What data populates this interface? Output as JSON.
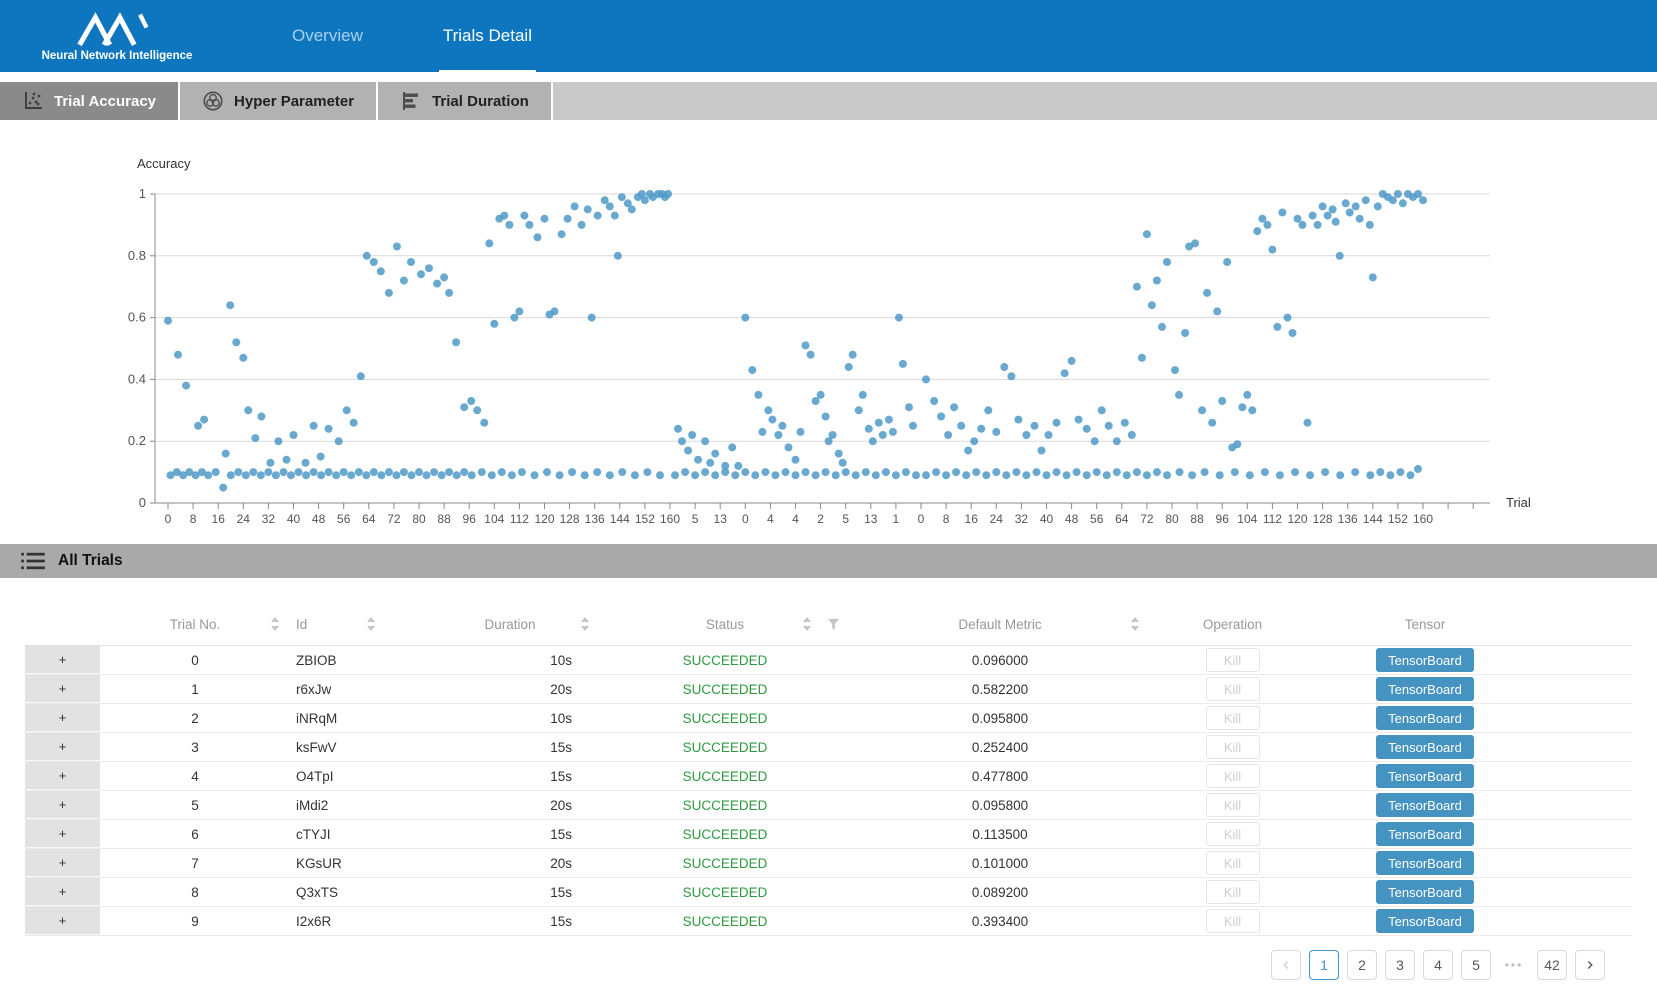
{
  "nav": {
    "brand": "Neural Network Intelligence",
    "tabs": [
      {
        "label": "Overview",
        "active": false
      },
      {
        "label": "Trials Detail",
        "active": true
      }
    ]
  },
  "chart_tabs": [
    {
      "label": "Trial Accuracy",
      "icon": "scatter-plot-icon",
      "active": true
    },
    {
      "label": "Hyper Parameter",
      "icon": "venn-icon",
      "active": false
    },
    {
      "label": "Trial Duration",
      "icon": "bars-icon",
      "active": false
    }
  ],
  "chart_data": {
    "type": "scatter",
    "title": "",
    "y_axis_label": "Accuracy",
    "x_axis_label": "Trial",
    "ylim": [
      0,
      1
    ],
    "yticks": [
      0,
      0.2,
      0.4,
      0.6,
      0.8,
      1
    ],
    "grid": true,
    "point_color": "#4f9ac8",
    "xticklabels": [
      "0",
      "8",
      "16",
      "24",
      "32",
      "40",
      "48",
      "56",
      "64",
      "72",
      "80",
      "88",
      "96",
      "104",
      "112",
      "120",
      "128",
      "136",
      "144",
      "152",
      "160",
      "5",
      "13",
      "0",
      "4",
      "4",
      "2",
      "5",
      "13",
      "1",
      "0",
      "8",
      "16",
      "24",
      "32",
      "40",
      "48",
      "56",
      "64",
      "72",
      "80",
      "88",
      "96",
      "104",
      "112",
      "120",
      "128",
      "136",
      "144",
      "152",
      "160"
    ],
    "x_unit": "axis tick index (see xticklabels, 0-50)",
    "points": [
      [
        0.1,
        0.09
      ],
      [
        0.35,
        0.1
      ],
      [
        0.6,
        0.09
      ],
      [
        0.85,
        0.1
      ],
      [
        1.1,
        0.09
      ],
      [
        1.35,
        0.1
      ],
      [
        1.6,
        0.09
      ],
      [
        1.9,
        0.1
      ],
      [
        2.2,
        0.05
      ],
      [
        2.3,
        0.16
      ],
      [
        2.5,
        0.09
      ],
      [
        2.8,
        0.1
      ],
      [
        3.1,
        0.09
      ],
      [
        3.4,
        0.1
      ],
      [
        3.7,
        0.09
      ],
      [
        4.0,
        0.1
      ],
      [
        4.3,
        0.09
      ],
      [
        4.6,
        0.1
      ],
      [
        4.9,
        0.09
      ],
      [
        5.2,
        0.1
      ],
      [
        5.5,
        0.09
      ],
      [
        5.8,
        0.1
      ],
      [
        6.1,
        0.09
      ],
      [
        6.4,
        0.1
      ],
      [
        6.7,
        0.09
      ],
      [
        7.0,
        0.1
      ],
      [
        7.3,
        0.09
      ],
      [
        7.6,
        0.1
      ],
      [
        7.9,
        0.09
      ],
      [
        8.2,
        0.1
      ],
      [
        8.5,
        0.09
      ],
      [
        8.8,
        0.1
      ],
      [
        9.1,
        0.09
      ],
      [
        9.4,
        0.1
      ],
      [
        9.7,
        0.09
      ],
      [
        10.0,
        0.1
      ],
      [
        10.3,
        0.09
      ],
      [
        10.6,
        0.1
      ],
      [
        10.9,
        0.09
      ],
      [
        11.2,
        0.1
      ],
      [
        11.5,
        0.09
      ],
      [
        11.8,
        0.1
      ],
      [
        12.1,
        0.09
      ],
      [
        12.5,
        0.1
      ],
      [
        12.9,
        0.09
      ],
      [
        13.3,
        0.1
      ],
      [
        13.7,
        0.09
      ],
      [
        14.1,
        0.1
      ],
      [
        14.6,
        0.09
      ],
      [
        15.1,
        0.1
      ],
      [
        15.6,
        0.09
      ],
      [
        16.1,
        0.1
      ],
      [
        16.6,
        0.09
      ],
      [
        17.1,
        0.1
      ],
      [
        17.6,
        0.09
      ],
      [
        18.1,
        0.1
      ],
      [
        18.6,
        0.09
      ],
      [
        19.1,
        0.1
      ],
      [
        19.6,
        0.09
      ],
      [
        0,
        0.59
      ],
      [
        0.4,
        0.48
      ],
      [
        0.72,
        0.38
      ],
      [
        1.2,
        0.25
      ],
      [
        1.44,
        0.27
      ],
      [
        2.48,
        0.64
      ],
      [
        2.72,
        0.52
      ],
      [
        3.0,
        0.47
      ],
      [
        3.2,
        0.3
      ],
      [
        3.48,
        0.21
      ],
      [
        3.72,
        0.28
      ],
      [
        4.08,
        0.13
      ],
      [
        4.4,
        0.2
      ],
      [
        4.72,
        0.14
      ],
      [
        5.0,
        0.22
      ],
      [
        5.48,
        0.13
      ],
      [
        5.8,
        0.25
      ],
      [
        6.08,
        0.15
      ],
      [
        6.4,
        0.24
      ],
      [
        6.8,
        0.2
      ],
      [
        7.12,
        0.3
      ],
      [
        7.4,
        0.26
      ],
      [
        7.68,
        0.41
      ],
      [
        7.92,
        0.8
      ],
      [
        8.2,
        0.78
      ],
      [
        8.48,
        0.75
      ],
      [
        8.8,
        0.68
      ],
      [
        9.12,
        0.83
      ],
      [
        9.4,
        0.72
      ],
      [
        9.68,
        0.78
      ],
      [
        10.08,
        0.74
      ],
      [
        10.4,
        0.76
      ],
      [
        10.72,
        0.71
      ],
      [
        11.0,
        0.73
      ],
      [
        11.2,
        0.68
      ],
      [
        11.48,
        0.52
      ],
      [
        11.8,
        0.31
      ],
      [
        12.08,
        0.33
      ],
      [
        12.32,
        0.3
      ],
      [
        12.6,
        0.26
      ],
      [
        12.8,
        0.84
      ],
      [
        13.0,
        0.58
      ],
      [
        13.2,
        0.92
      ],
      [
        13.4,
        0.93
      ],
      [
        13.6,
        0.9
      ],
      [
        13.8,
        0.6
      ],
      [
        14.0,
        0.62
      ],
      [
        14.2,
        0.93
      ],
      [
        14.4,
        0.9
      ],
      [
        14.72,
        0.86
      ],
      [
        15.0,
        0.92
      ],
      [
        15.2,
        0.61
      ],
      [
        15.4,
        0.62
      ],
      [
        15.68,
        0.87
      ],
      [
        15.92,
        0.92
      ],
      [
        16.2,
        0.96
      ],
      [
        16.48,
        0.9
      ],
      [
        16.72,
        0.95
      ],
      [
        16.88,
        0.6
      ],
      [
        17.12,
        0.93
      ],
      [
        17.4,
        0.98
      ],
      [
        17.6,
        0.96
      ],
      [
        17.8,
        0.93
      ],
      [
        17.92,
        0.8
      ],
      [
        18.08,
        0.99
      ],
      [
        18.32,
        0.97
      ],
      [
        18.48,
        0.95
      ],
      [
        18.72,
        0.99
      ],
      [
        18.88,
        1
      ],
      [
        19.0,
        0.98
      ],
      [
        19.2,
        1
      ],
      [
        19.32,
        0.99
      ],
      [
        19.52,
        1
      ],
      [
        19.68,
        1
      ],
      [
        19.8,
        0.99
      ],
      [
        19.92,
        1
      ],
      [
        20.2,
        0.09
      ],
      [
        20.6,
        0.1
      ],
      [
        21.0,
        0.09
      ],
      [
        21.4,
        0.1
      ],
      [
        21.8,
        0.09
      ],
      [
        22.2,
        0.1
      ],
      [
        22.6,
        0.09
      ],
      [
        23.0,
        0.1
      ],
      [
        23.4,
        0.09
      ],
      [
        23.8,
        0.1
      ],
      [
        24.2,
        0.09
      ],
      [
        24.6,
        0.1
      ],
      [
        25.0,
        0.09
      ],
      [
        25.4,
        0.1
      ],
      [
        25.8,
        0.09
      ],
      [
        26.2,
        0.1
      ],
      [
        26.6,
        0.09
      ],
      [
        27.0,
        0.1
      ],
      [
        27.4,
        0.09
      ],
      [
        27.8,
        0.1
      ],
      [
        28.2,
        0.09
      ],
      [
        28.6,
        0.1
      ],
      [
        29.0,
        0.09
      ],
      [
        29.4,
        0.1
      ],
      [
        29.8,
        0.09
      ],
      [
        20.32,
        0.24
      ],
      [
        20.48,
        0.2
      ],
      [
        20.72,
        0.17
      ],
      [
        20.88,
        0.22
      ],
      [
        21.12,
        0.14
      ],
      [
        21.4,
        0.2
      ],
      [
        21.6,
        0.13
      ],
      [
        21.8,
        0.16
      ],
      [
        22.2,
        0.12
      ],
      [
        22.48,
        0.18
      ],
      [
        22.72,
        0.12
      ],
      [
        23.0,
        0.6
      ],
      [
        23.28,
        0.43
      ],
      [
        23.52,
        0.35
      ],
      [
        23.68,
        0.23
      ],
      [
        23.92,
        0.3
      ],
      [
        24.08,
        0.27
      ],
      [
        24.32,
        0.22
      ],
      [
        24.48,
        0.25
      ],
      [
        24.72,
        0.18
      ],
      [
        25.0,
        0.14
      ],
      [
        25.2,
        0.23
      ],
      [
        25.4,
        0.51
      ],
      [
        25.6,
        0.48
      ],
      [
        25.8,
        0.33
      ],
      [
        26.0,
        0.35
      ],
      [
        26.2,
        0.28
      ],
      [
        26.32,
        0.2
      ],
      [
        26.48,
        0.22
      ],
      [
        26.72,
        0.16
      ],
      [
        26.88,
        0.13
      ],
      [
        27.12,
        0.44
      ],
      [
        27.28,
        0.48
      ],
      [
        27.52,
        0.3
      ],
      [
        27.68,
        0.35
      ],
      [
        27.92,
        0.24
      ],
      [
        28.08,
        0.2
      ],
      [
        28.32,
        0.26
      ],
      [
        28.48,
        0.22
      ],
      [
        28.72,
        0.27
      ],
      [
        28.88,
        0.23
      ],
      [
        29.12,
        0.6
      ],
      [
        29.28,
        0.45
      ],
      [
        29.52,
        0.31
      ],
      [
        29.68,
        0.25
      ],
      [
        30.2,
        0.09
      ],
      [
        30.6,
        0.1
      ],
      [
        31.0,
        0.09
      ],
      [
        31.4,
        0.1
      ],
      [
        31.8,
        0.09
      ],
      [
        32.2,
        0.1
      ],
      [
        32.6,
        0.09
      ],
      [
        33.0,
        0.1
      ],
      [
        33.4,
        0.09
      ],
      [
        33.8,
        0.1
      ],
      [
        34.2,
        0.09
      ],
      [
        34.6,
        0.1
      ],
      [
        35.0,
        0.09
      ],
      [
        35.4,
        0.1
      ],
      [
        35.8,
        0.09
      ],
      [
        36.2,
        0.1
      ],
      [
        36.6,
        0.09
      ],
      [
        37.0,
        0.1
      ],
      [
        37.4,
        0.09
      ],
      [
        37.8,
        0.1
      ],
      [
        38.2,
        0.09
      ],
      [
        38.6,
        0.1
      ],
      [
        39.0,
        0.09
      ],
      [
        39.4,
        0.1
      ],
      [
        39.8,
        0.09
      ],
      [
        40.3,
        0.1
      ],
      [
        40.8,
        0.09
      ],
      [
        41.3,
        0.1
      ],
      [
        41.9,
        0.09
      ],
      [
        42.5,
        0.1
      ],
      [
        43.1,
        0.09
      ],
      [
        43.7,
        0.1
      ],
      [
        44.3,
        0.09
      ],
      [
        44.9,
        0.1
      ],
      [
        45.5,
        0.09
      ],
      [
        46.1,
        0.1
      ],
      [
        46.7,
        0.09
      ],
      [
        47.3,
        0.1
      ],
      [
        47.9,
        0.09
      ],
      [
        48.3,
        0.1
      ],
      [
        48.7,
        0.09
      ],
      [
        49.1,
        0.1
      ],
      [
        49.5,
        0.09
      ],
      [
        49.8,
        0.11
      ],
      [
        30.2,
        0.4
      ],
      [
        30.52,
        0.33
      ],
      [
        30.8,
        0.28
      ],
      [
        31.08,
        0.22
      ],
      [
        31.32,
        0.31
      ],
      [
        31.6,
        0.25
      ],
      [
        31.88,
        0.17
      ],
      [
        32.12,
        0.2
      ],
      [
        32.4,
        0.24
      ],
      [
        32.68,
        0.3
      ],
      [
        33.0,
        0.23
      ],
      [
        33.32,
        0.44
      ],
      [
        33.6,
        0.41
      ],
      [
        33.88,
        0.27
      ],
      [
        34.2,
        0.22
      ],
      [
        34.52,
        0.25
      ],
      [
        34.8,
        0.17
      ],
      [
        35.08,
        0.22
      ],
      [
        35.4,
        0.26
      ],
      [
        35.72,
        0.42
      ],
      [
        36.0,
        0.46
      ],
      [
        36.28,
        0.27
      ],
      [
        36.6,
        0.24
      ],
      [
        36.92,
        0.2
      ],
      [
        37.2,
        0.3
      ],
      [
        37.48,
        0.25
      ],
      [
        37.8,
        0.2
      ],
      [
        38.12,
        0.26
      ],
      [
        38.4,
        0.22
      ],
      [
        38.6,
        0.7
      ],
      [
        38.8,
        0.47
      ],
      [
        39.0,
        0.87
      ],
      [
        39.2,
        0.64
      ],
      [
        39.4,
        0.72
      ],
      [
        39.6,
        0.57
      ],
      [
        39.8,
        0.78
      ],
      [
        40.12,
        0.43
      ],
      [
        40.28,
        0.35
      ],
      [
        40.52,
        0.55
      ],
      [
        40.68,
        0.83
      ],
      [
        40.92,
        0.84
      ],
      [
        41.2,
        0.3
      ],
      [
        41.4,
        0.68
      ],
      [
        41.6,
        0.26
      ],
      [
        41.8,
        0.62
      ],
      [
        42.0,
        0.33
      ],
      [
        42.2,
        0.78
      ],
      [
        42.4,
        0.18
      ],
      [
        42.6,
        0.19
      ],
      [
        42.8,
        0.31
      ],
      [
        43.0,
        0.35
      ],
      [
        43.2,
        0.3
      ],
      [
        43.4,
        0.88
      ],
      [
        43.6,
        0.92
      ],
      [
        43.8,
        0.9
      ],
      [
        44.0,
        0.82
      ],
      [
        44.2,
        0.57
      ],
      [
        44.4,
        0.94
      ],
      [
        44.6,
        0.6
      ],
      [
        44.8,
        0.55
      ],
      [
        45.0,
        0.92
      ],
      [
        45.2,
        0.9
      ],
      [
        45.4,
        0.26
      ],
      [
        45.6,
        0.93
      ],
      [
        45.8,
        0.9
      ],
      [
        46.0,
        0.96
      ],
      [
        46.2,
        0.93
      ],
      [
        46.4,
        0.95
      ],
      [
        46.52,
        0.91
      ],
      [
        46.68,
        0.8
      ],
      [
        46.92,
        0.97
      ],
      [
        47.08,
        0.94
      ],
      [
        47.32,
        0.96
      ],
      [
        47.48,
        0.92
      ],
      [
        47.72,
        0.98
      ],
      [
        47.88,
        0.9
      ],
      [
        48.0,
        0.73
      ],
      [
        48.2,
        0.96
      ],
      [
        48.4,
        1
      ],
      [
        48.6,
        0.99
      ],
      [
        48.8,
        0.98
      ],
      [
        49.0,
        1
      ],
      [
        49.2,
        0.97
      ],
      [
        49.4,
        1
      ],
      [
        49.6,
        0.99
      ],
      [
        49.8,
        1
      ],
      [
        50.0,
        0.98
      ]
    ]
  },
  "table": {
    "section_title": "All Trials",
    "expander_symbol": "+",
    "kill_label": "Kill",
    "tensorboard_label": "TensorBoard",
    "columns": [
      {
        "key": "trial_no",
        "label": "Trial No.",
        "sortable": true,
        "filterable": false
      },
      {
        "key": "id",
        "label": "Id",
        "sortable": true,
        "filterable": false
      },
      {
        "key": "duration",
        "label": "Duration",
        "sortable": true,
        "filterable": false
      },
      {
        "key": "status",
        "label": "Status",
        "sortable": true,
        "filterable": true
      },
      {
        "key": "metric",
        "label": "Default Metric",
        "sortable": true,
        "filterable": false
      },
      {
        "key": "operation",
        "label": "Operation",
        "sortable": false,
        "filterable": false
      },
      {
        "key": "tensor",
        "label": "Tensor",
        "sortable": false,
        "filterable": false
      }
    ],
    "rows": [
      {
        "trial_no": "0",
        "id": "ZBIOB",
        "duration": "10s",
        "status": "SUCCEEDED",
        "metric": "0.096000"
      },
      {
        "trial_no": "1",
        "id": "r6xJw",
        "duration": "20s",
        "status": "SUCCEEDED",
        "metric": "0.582200"
      },
      {
        "trial_no": "2",
        "id": "iNRqM",
        "duration": "10s",
        "status": "SUCCEEDED",
        "metric": "0.095800"
      },
      {
        "trial_no": "3",
        "id": "ksFwV",
        "duration": "15s",
        "status": "SUCCEEDED",
        "metric": "0.252400"
      },
      {
        "trial_no": "4",
        "id": "O4TpI",
        "duration": "15s",
        "status": "SUCCEEDED",
        "metric": "0.477800"
      },
      {
        "trial_no": "5",
        "id": "iMdi2",
        "duration": "20s",
        "status": "SUCCEEDED",
        "metric": "0.095800"
      },
      {
        "trial_no": "6",
        "id": "cTYJI",
        "duration": "15s",
        "status": "SUCCEEDED",
        "metric": "0.113500"
      },
      {
        "trial_no": "7",
        "id": "KGsUR",
        "duration": "20s",
        "status": "SUCCEEDED",
        "metric": "0.101000"
      },
      {
        "trial_no": "8",
        "id": "Q3xTS",
        "duration": "15s",
        "status": "SUCCEEDED",
        "metric": "0.089200"
      },
      {
        "trial_no": "9",
        "id": "I2x6R",
        "duration": "15s",
        "status": "SUCCEEDED",
        "metric": "0.393400"
      }
    ]
  },
  "pagination": {
    "items": [
      {
        "type": "prev"
      },
      {
        "type": "page",
        "label": "1",
        "active": true
      },
      {
        "type": "page",
        "label": "2",
        "active": false
      },
      {
        "type": "page",
        "label": "3",
        "active": false
      },
      {
        "type": "page",
        "label": "4",
        "active": false
      },
      {
        "type": "page",
        "label": "5",
        "active": false
      },
      {
        "type": "ellipsis",
        "label": "•••"
      },
      {
        "type": "page",
        "label": "42",
        "active": false
      },
      {
        "type": "next"
      }
    ]
  },
  "colors": {
    "nav_bg": "#0d76bf",
    "dot_blue": "#4f9ac8",
    "success_green": "#2f9a41",
    "tensorboard_blue": "#4593c1",
    "active_page_blue": "#3e97d1",
    "tab_active_bg": "#8a8a8a",
    "section_bar_bg": "#a9a9a9"
  }
}
